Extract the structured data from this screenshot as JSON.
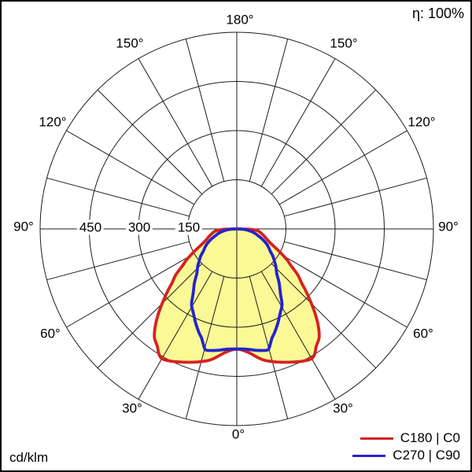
{
  "header": {
    "efficiency": "η: 100%"
  },
  "footer": {
    "unit": "cd/klm"
  },
  "legend": [
    {
      "label": "C180 | C0",
      "color": "#d52222"
    },
    {
      "label": "C270 | C90",
      "color": "#2424cc"
    }
  ],
  "polar": {
    "angle_labels": [
      "180°",
      "150°",
      "150°",
      "120°",
      "120°",
      "90°",
      "90°",
      "60°",
      "60°",
      "30°",
      "30°",
      "0°"
    ],
    "ring_labels": [
      "450",
      "300",
      "150"
    ]
  },
  "chart_data": {
    "type": "polar-intensity",
    "title": "Luminous intensity distribution",
    "unit": "cd/klm",
    "efficiency_percent": 100,
    "angle_step_deg": 15,
    "ring_values": [
      150,
      300,
      450,
      600
    ],
    "rmax": 600,
    "angle_labels_deg": [
      0,
      30,
      60,
      90,
      120,
      150,
      180
    ],
    "grid_color": "#1c1c1c",
    "series": [
      {
        "name": "C180 | C0",
        "color": "#d52222",
        "fill": "#fbf996",
        "symmetric": true,
        "points": [
          [
            0,
            367
          ],
          [
            3,
            371
          ],
          [
            6,
            381
          ],
          [
            9,
            396
          ],
          [
            12,
            410
          ],
          [
            16,
            422
          ],
          [
            20,
            433
          ],
          [
            24,
            444
          ],
          [
            27,
            452
          ],
          [
            30,
            457
          ],
          [
            32,
            449
          ],
          [
            34,
            433
          ],
          [
            37,
            417
          ],
          [
            39,
            398
          ],
          [
            41,
            375
          ],
          [
            43,
            349
          ],
          [
            45,
            322
          ],
          [
            48,
            284
          ],
          [
            50,
            259
          ],
          [
            53,
            233
          ],
          [
            56,
            199
          ],
          [
            58,
            183
          ],
          [
            60,
            165
          ],
          [
            62,
            148
          ],
          [
            64,
            131
          ],
          [
            66,
            118
          ],
          [
            68,
            108
          ],
          [
            70,
            100
          ],
          [
            73,
            92
          ],
          [
            76,
            85
          ],
          [
            79,
            78
          ],
          [
            82,
            72
          ],
          [
            85,
            64
          ],
          [
            87,
            52
          ],
          [
            88.5,
            38
          ],
          [
            89.5,
            20
          ],
          [
            90,
            2
          ]
        ]
      },
      {
        "name": "C270 | C90",
        "color": "#2424cc",
        "fill": null,
        "symmetric": true,
        "points": [
          [
            0,
            366
          ],
          [
            3,
            367
          ],
          [
            6,
            370
          ],
          [
            9,
            375
          ],
          [
            12,
            379
          ],
          [
            14.5,
            381
          ],
          [
            16,
            368
          ],
          [
            18,
            349
          ],
          [
            20,
            337
          ],
          [
            23.5,
            314
          ],
          [
            26,
            297
          ],
          [
            28,
            285
          ],
          [
            31,
            268
          ],
          [
            34,
            238
          ],
          [
            38,
            210
          ],
          [
            42,
            182
          ],
          [
            46,
            166
          ],
          [
            49,
            153
          ],
          [
            53,
            138
          ],
          [
            56,
            124
          ],
          [
            60,
            112
          ],
          [
            63,
            103
          ],
          [
            66,
            92
          ],
          [
            69,
            81
          ],
          [
            72,
            70
          ],
          [
            76,
            58
          ],
          [
            80,
            45
          ],
          [
            84,
            32
          ],
          [
            87,
            18
          ],
          [
            89,
            8
          ],
          [
            90,
            1
          ]
        ]
      }
    ]
  }
}
